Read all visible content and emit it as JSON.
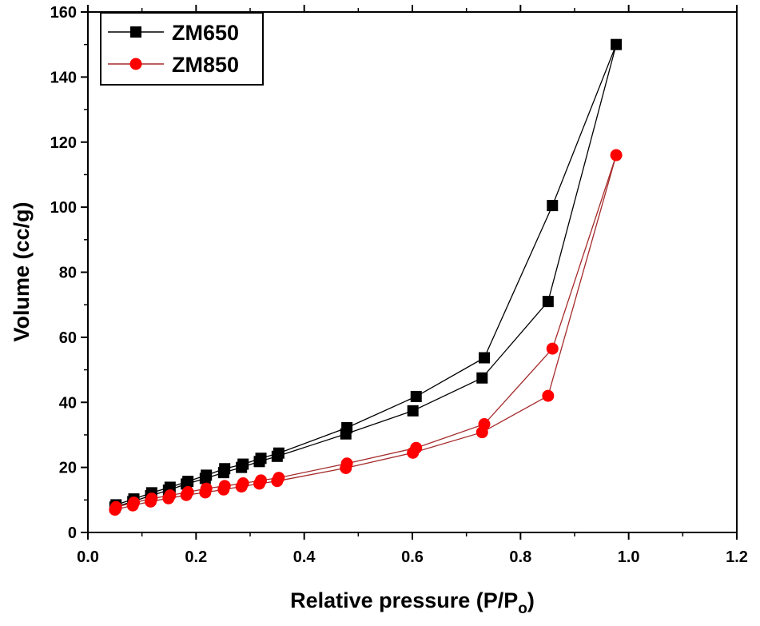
{
  "chart_data": {
    "type": "line",
    "xlabel": "Relative pressure (P/P",
    "xlabel_sub": "o",
    "xlabel_end": ")",
    "ylabel": "Volume (cc/g)",
    "xlim": [
      0.0,
      1.2
    ],
    "ylim": [
      0,
      160
    ],
    "xticks": [
      "0.0",
      "0.2",
      "0.4",
      "0.6",
      "0.8",
      "1.0",
      "1.2"
    ],
    "yticks": [
      "0",
      "20",
      "40",
      "60",
      "80",
      "100",
      "120",
      "140",
      "160"
    ],
    "grid": false,
    "legend_position": "top-left",
    "series": [
      {
        "name": "ZM650",
        "color": "#000000",
        "marker": "square",
        "x": [
          0.05,
          0.083,
          0.116,
          0.149,
          0.182,
          0.217,
          0.251,
          0.284,
          0.317,
          0.35,
          0.477,
          0.601,
          0.729,
          0.851,
          0.977,
          0.859,
          0.733,
          0.607,
          0.479,
          0.353,
          0.32,
          0.287,
          0.253,
          0.219,
          0.185,
          0.152,
          0.118,
          0.085,
          0.052
        ],
        "y": [
          7.8,
          9.5,
          11.3,
          13.0,
          14.9,
          16.6,
          18.4,
          20.0,
          21.8,
          23.4,
          30.3,
          37.4,
          47.5,
          71.0,
          150.0,
          100.5,
          53.7,
          41.8,
          32.2,
          24.4,
          22.8,
          21.0,
          19.6,
          17.6,
          15.7,
          13.9,
          12.2,
          10.3,
          8.5
        ]
      },
      {
        "name": "ZM850",
        "color": "#ff0000",
        "line_color": "#a52a2a",
        "marker": "circle",
        "x": [
          0.05,
          0.083,
          0.116,
          0.149,
          0.182,
          0.217,
          0.251,
          0.284,
          0.317,
          0.35,
          0.477,
          0.601,
          0.729,
          0.851,
          0.977,
          0.859,
          0.733,
          0.607,
          0.479,
          0.353,
          0.32,
          0.287,
          0.253,
          0.219,
          0.185,
          0.152,
          0.118,
          0.085,
          0.052
        ],
        "y": [
          7.0,
          8.3,
          9.5,
          10.5,
          11.5,
          12.3,
          13.2,
          14.1,
          15.0,
          15.8,
          19.8,
          24.5,
          30.8,
          42.0,
          116.0,
          56.5,
          33.3,
          26.0,
          21.2,
          16.8,
          16.0,
          15.1,
          14.3,
          13.5,
          12.4,
          11.4,
          10.4,
          9.2,
          7.8
        ]
      }
    ]
  }
}
